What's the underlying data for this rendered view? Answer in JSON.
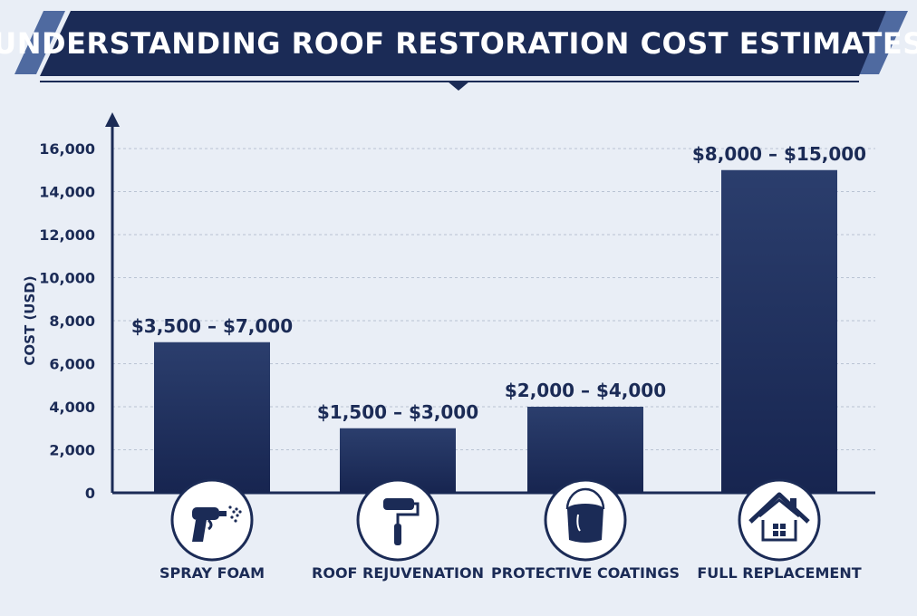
{
  "banner": {
    "title": "UNDERSTANDING ROOF RESTORATION COST ESTIMATES"
  },
  "colors": {
    "navy": "#1b2b56",
    "bar_top": "#2b3e6d",
    "bar_bottom": "#172550",
    "background": "#e9eef6",
    "accent_stripe": "#4f6aa0",
    "grid": "#b9c3d3"
  },
  "chart_data": {
    "type": "bar",
    "title": "UNDERSTANDING ROOF RESTORATION COST ESTIMATES",
    "ylabel": "COST (USD)",
    "xlabel": "",
    "ylim": [
      0,
      16000
    ],
    "yticks": [
      0,
      2000,
      4000,
      6000,
      8000,
      10000,
      12000,
      14000,
      16000
    ],
    "ytick_labels": [
      "0",
      "2,000",
      "4,000",
      "6,000",
      "8,000",
      "10,000",
      "12,000",
      "14,000",
      "16,000"
    ],
    "grid": true,
    "categories": [
      "SPRAY FOAM",
      "ROOF REJUVENATION",
      "PROTECTIVE COATINGS",
      "FULL REPLACEMENT"
    ],
    "values": [
      7000,
      3000,
      4000,
      15000
    ],
    "data_labels": [
      "$3,500 – $7,000",
      "$1,500 – $3,000",
      "$2,000 – $4,000",
      "$8,000 – $15,000"
    ],
    "icons": [
      "spray-gun-icon",
      "paint-roller-icon",
      "paint-bucket-icon",
      "house-icon"
    ]
  }
}
